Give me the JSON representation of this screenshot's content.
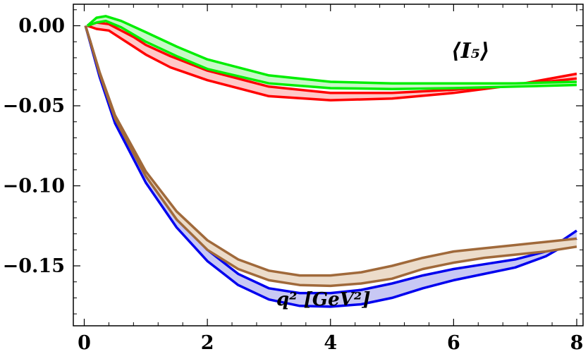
{
  "chart_data": {
    "type": "area",
    "title": "",
    "xlabel": "q² [GeV²]",
    "ylabel": "",
    "xlim": [
      0,
      8.1
    ],
    "ylim": [
      -0.185,
      0.016
    ],
    "grid": false,
    "legend": "none",
    "annotation": "⟨I₅⟩",
    "x_ticks": [
      0,
      2,
      4,
      6,
      8
    ],
    "x_tick_labels": [
      "0",
      "2",
      "4",
      "6",
      "8"
    ],
    "y_ticks": [
      0.0,
      -0.05,
      -0.1,
      -0.15
    ],
    "y_tick_labels": [
      "0.00",
      "−0.05",
      "−0.10",
      "−0.15"
    ],
    "series": [
      {
        "color": "#ff0000",
        "fill": "#ffc8c8",
        "upper": [
          [
            0.05,
            0.0
          ],
          [
            0.2,
            0.002
          ],
          [
            0.4,
            0.001
          ],
          [
            0.6,
            -0.003
          ],
          [
            0.8,
            -0.007
          ],
          [
            1.0,
            -0.012
          ],
          [
            1.4,
            -0.019
          ],
          [
            2.0,
            -0.028
          ],
          [
            3.0,
            -0.038
          ],
          [
            4.0,
            -0.042
          ],
          [
            5.0,
            -0.042
          ],
          [
            6.0,
            -0.04
          ],
          [
            7.0,
            -0.037
          ],
          [
            8.0,
            -0.03
          ]
        ],
        "lower": [
          [
            0.05,
            0.0
          ],
          [
            0.2,
            -0.002
          ],
          [
            0.4,
            -0.003
          ],
          [
            0.6,
            -0.008
          ],
          [
            0.8,
            -0.013
          ],
          [
            1.0,
            -0.018
          ],
          [
            1.4,
            -0.026
          ],
          [
            2.0,
            -0.034
          ],
          [
            3.0,
            -0.044
          ],
          [
            4.0,
            -0.0465
          ],
          [
            5.0,
            -0.0455
          ],
          [
            6.0,
            -0.042
          ],
          [
            7.0,
            -0.037
          ],
          [
            8.0,
            -0.033
          ]
        ]
      },
      {
        "color": "#00ee00",
        "fill": "#c8f8c8",
        "upper": [
          [
            0.05,
            0.0
          ],
          [
            0.2,
            0.005
          ],
          [
            0.35,
            0.006
          ],
          [
            0.6,
            0.003
          ],
          [
            1.0,
            -0.004
          ],
          [
            1.5,
            -0.013
          ],
          [
            2.0,
            -0.021
          ],
          [
            3.0,
            -0.031
          ],
          [
            4.0,
            -0.035
          ],
          [
            5.0,
            -0.036
          ],
          [
            6.0,
            -0.036
          ],
          [
            7.0,
            -0.036
          ],
          [
            8.0,
            -0.035
          ]
        ],
        "lower": [
          [
            0.05,
            0.0
          ],
          [
            0.2,
            0.002
          ],
          [
            0.35,
            0.003
          ],
          [
            0.6,
            -0.001
          ],
          [
            1.0,
            -0.01
          ],
          [
            1.5,
            -0.019
          ],
          [
            2.0,
            -0.027
          ],
          [
            3.0,
            -0.036
          ],
          [
            4.0,
            -0.039
          ],
          [
            5.0,
            -0.0395
          ],
          [
            6.0,
            -0.039
          ],
          [
            7.0,
            -0.038
          ],
          [
            8.0,
            -0.037
          ]
        ]
      },
      {
        "color": "#0000ee",
        "fill": "#c8c8f4",
        "upper": [
          [
            0.02,
            0.0
          ],
          [
            0.1,
            -0.01
          ],
          [
            0.25,
            -0.03
          ],
          [
            0.5,
            -0.058
          ],
          [
            1.0,
            -0.094
          ],
          [
            1.5,
            -0.12
          ],
          [
            2.0,
            -0.14
          ],
          [
            2.5,
            -0.155
          ],
          [
            3.0,
            -0.164
          ],
          [
            3.5,
            -0.167
          ],
          [
            4.0,
            -0.167
          ],
          [
            4.5,
            -0.165
          ],
          [
            5.0,
            -0.161
          ],
          [
            5.5,
            -0.156
          ],
          [
            6.0,
            -0.152
          ],
          [
            6.5,
            -0.149
          ],
          [
            7.0,
            -0.146
          ],
          [
            7.5,
            -0.141
          ],
          [
            8.0,
            -0.128
          ]
        ],
        "lower": [
          [
            0.02,
            0.0
          ],
          [
            0.1,
            -0.011
          ],
          [
            0.25,
            -0.032
          ],
          [
            0.5,
            -0.061
          ],
          [
            1.0,
            -0.098
          ],
          [
            1.5,
            -0.126
          ],
          [
            2.0,
            -0.147
          ],
          [
            2.5,
            -0.162
          ],
          [
            3.0,
            -0.171
          ],
          [
            3.5,
            -0.175
          ],
          [
            4.0,
            -0.1755
          ],
          [
            4.5,
            -0.174
          ],
          [
            5.0,
            -0.17
          ],
          [
            5.5,
            -0.164
          ],
          [
            6.0,
            -0.159
          ],
          [
            6.5,
            -0.155
          ],
          [
            7.0,
            -0.151
          ],
          [
            7.5,
            -0.144
          ],
          [
            8.0,
            -0.133
          ]
        ]
      },
      {
        "color": "#a0693a",
        "fill": "#ecdcca",
        "upper": [
          [
            0.02,
            0.0
          ],
          [
            0.1,
            -0.01
          ],
          [
            0.25,
            -0.029
          ],
          [
            0.5,
            -0.056
          ],
          [
            1.0,
            -0.091
          ],
          [
            1.5,
            -0.116
          ],
          [
            2.0,
            -0.134
          ],
          [
            2.5,
            -0.146
          ],
          [
            3.0,
            -0.153
          ],
          [
            3.5,
            -0.156
          ],
          [
            4.0,
            -0.156
          ],
          [
            4.5,
            -0.154
          ],
          [
            5.0,
            -0.15
          ],
          [
            5.5,
            -0.145
          ],
          [
            6.0,
            -0.141
          ],
          [
            6.5,
            -0.139
          ],
          [
            7.0,
            -0.137
          ],
          [
            7.5,
            -0.135
          ],
          [
            8.0,
            -0.133
          ]
        ],
        "lower": [
          [
            0.02,
            0.0
          ],
          [
            0.1,
            -0.01
          ],
          [
            0.25,
            -0.03
          ],
          [
            0.5,
            -0.058
          ],
          [
            1.0,
            -0.094
          ],
          [
            1.5,
            -0.121
          ],
          [
            2.0,
            -0.14
          ],
          [
            2.5,
            -0.152
          ],
          [
            3.0,
            -0.159
          ],
          [
            3.5,
            -0.162
          ],
          [
            4.0,
            -0.1625
          ],
          [
            4.5,
            -0.161
          ],
          [
            5.0,
            -0.158
          ],
          [
            5.5,
            -0.152
          ],
          [
            6.0,
            -0.148
          ],
          [
            6.5,
            -0.145
          ],
          [
            7.0,
            -0.143
          ],
          [
            7.5,
            -0.141
          ],
          [
            8.0,
            -0.138
          ]
        ]
      }
    ]
  }
}
